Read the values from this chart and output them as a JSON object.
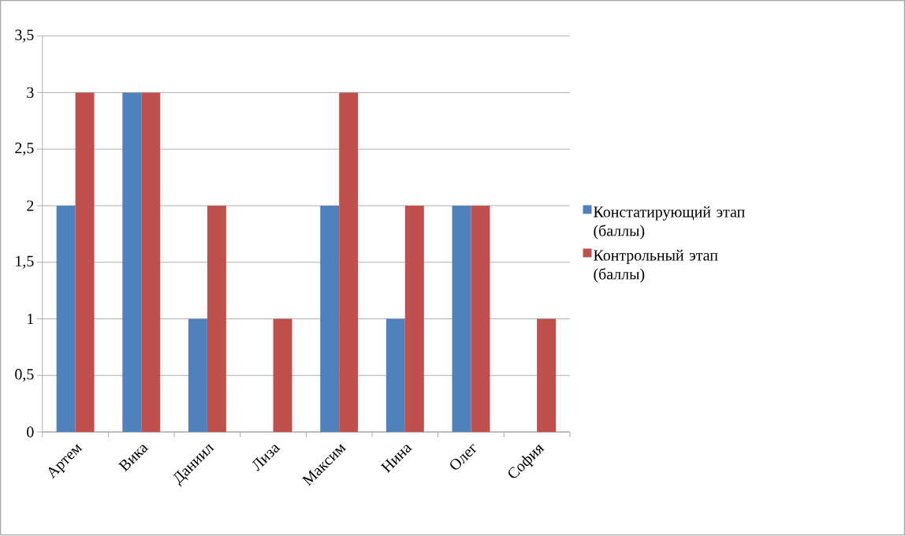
{
  "chart_data": {
    "type": "bar",
    "categories": [
      "Артем",
      "Вика",
      "Даниил",
      "Лиза",
      "Максим",
      "Нина",
      "Олег",
      "София"
    ],
    "series": [
      {
        "name": "Констатирующий этап (баллы)",
        "color": "#4f81bd",
        "values": [
          2,
          3,
          1,
          0,
          2,
          1,
          2,
          0
        ]
      },
      {
        "name": "Контрольный этап (баллы)",
        "color": "#c0504d",
        "values": [
          3,
          3,
          2,
          1,
          3,
          2,
          2,
          1
        ]
      }
    ],
    "ylim": [
      0,
      3.5
    ],
    "yticks": [
      0,
      {
        "value": 0.5,
        "label": "0,5"
      },
      1,
      {
        "value": 1.5,
        "label": "1,5"
      },
      2,
      {
        "value": 2.5,
        "label": "2,5"
      },
      3,
      {
        "value": 3.5,
        "label": "3,5"
      }
    ],
    "grid": "y",
    "legend": "right"
  }
}
